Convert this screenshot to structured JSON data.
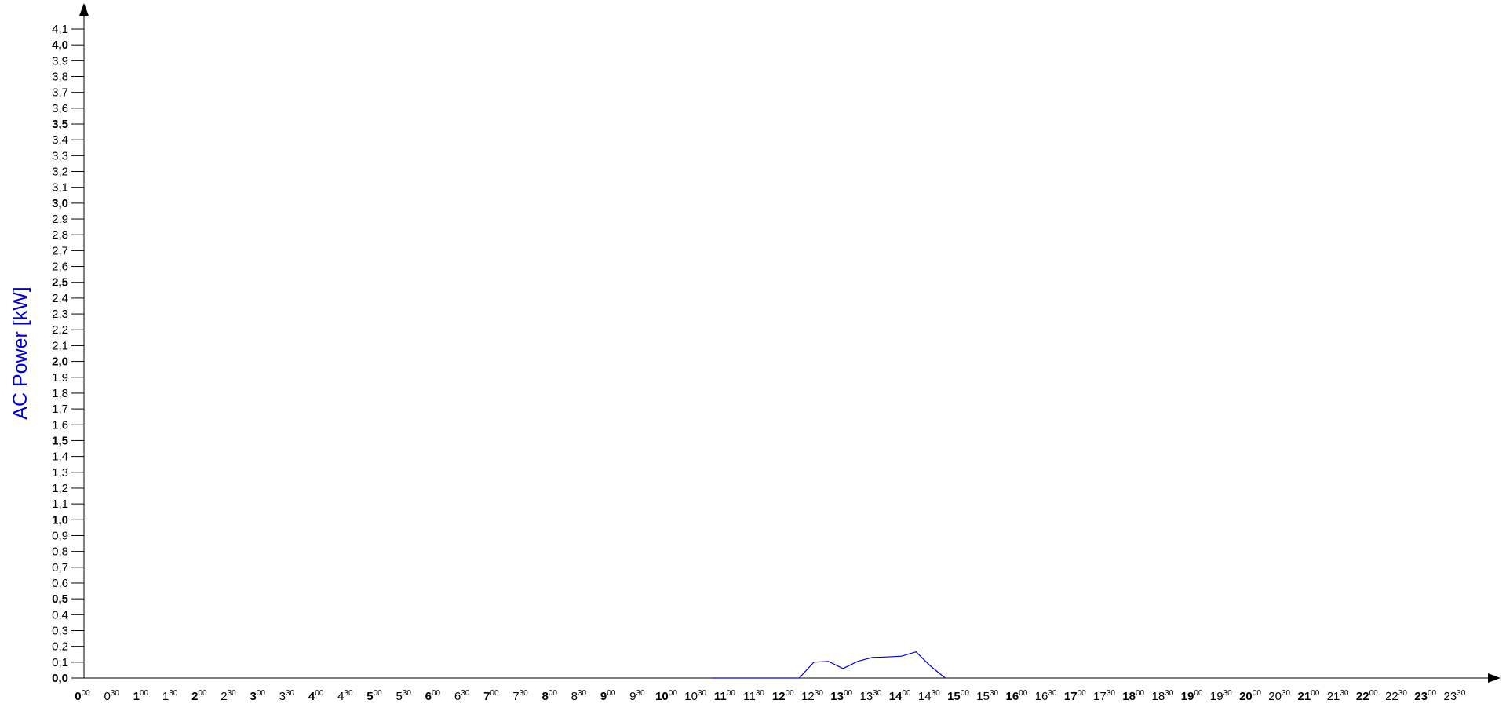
{
  "chart_data": {
    "type": "line",
    "title": "",
    "xlabel": "",
    "ylabel": "AC Power [kW]",
    "ylim": [
      0,
      4.1
    ],
    "xlim_hours": [
      0,
      23.5
    ],
    "grid": false,
    "colors": {
      "axis": "#000000",
      "line": "#0000cc",
      "ylabel": "#0000cc"
    },
    "y_ticks": [
      {
        "value": 0.0,
        "label": "0,0",
        "bold": true
      },
      {
        "value": 0.1,
        "label": "0,1",
        "bold": false
      },
      {
        "value": 0.2,
        "label": "0,2",
        "bold": false
      },
      {
        "value": 0.3,
        "label": "0,3",
        "bold": false
      },
      {
        "value": 0.4,
        "label": "0,4",
        "bold": false
      },
      {
        "value": 0.5,
        "label": "0,5",
        "bold": true
      },
      {
        "value": 0.6,
        "label": "0,6",
        "bold": false
      },
      {
        "value": 0.7,
        "label": "0,7",
        "bold": false
      },
      {
        "value": 0.8,
        "label": "0,8",
        "bold": false
      },
      {
        "value": 0.9,
        "label": "0,9",
        "bold": false
      },
      {
        "value": 1.0,
        "label": "1,0",
        "bold": true
      },
      {
        "value": 1.1,
        "label": "1,1",
        "bold": false
      },
      {
        "value": 1.2,
        "label": "1,2",
        "bold": false
      },
      {
        "value": 1.3,
        "label": "1,3",
        "bold": false
      },
      {
        "value": 1.4,
        "label": "1,4",
        "bold": false
      },
      {
        "value": 1.5,
        "label": "1,5",
        "bold": true
      },
      {
        "value": 1.6,
        "label": "1,6",
        "bold": false
      },
      {
        "value": 1.7,
        "label": "1,7",
        "bold": false
      },
      {
        "value": 1.8,
        "label": "1,8",
        "bold": false
      },
      {
        "value": 1.9,
        "label": "1,9",
        "bold": false
      },
      {
        "value": 2.0,
        "label": "2,0",
        "bold": true
      },
      {
        "value": 2.1,
        "label": "2,1",
        "bold": false
      },
      {
        "value": 2.2,
        "label": "2,2",
        "bold": false
      },
      {
        "value": 2.3,
        "label": "2,3",
        "bold": false
      },
      {
        "value": 2.4,
        "label": "2,4",
        "bold": false
      },
      {
        "value": 2.5,
        "label": "2,5",
        "bold": true
      },
      {
        "value": 2.6,
        "label": "2,6",
        "bold": false
      },
      {
        "value": 2.7,
        "label": "2,7",
        "bold": false
      },
      {
        "value": 2.8,
        "label": "2,8",
        "bold": false
      },
      {
        "value": 2.9,
        "label": "2,9",
        "bold": false
      },
      {
        "value": 3.0,
        "label": "3,0",
        "bold": true
      },
      {
        "value": 3.1,
        "label": "3,1",
        "bold": false
      },
      {
        "value": 3.2,
        "label": "3,2",
        "bold": false
      },
      {
        "value": 3.3,
        "label": "3,3",
        "bold": false
      },
      {
        "value": 3.4,
        "label": "3,4",
        "bold": false
      },
      {
        "value": 3.5,
        "label": "3,5",
        "bold": true
      },
      {
        "value": 3.6,
        "label": "3,6",
        "bold": false
      },
      {
        "value": 3.7,
        "label": "3,7",
        "bold": false
      },
      {
        "value": 3.8,
        "label": "3,8",
        "bold": false
      },
      {
        "value": 3.9,
        "label": "3,9",
        "bold": false
      },
      {
        "value": 4.0,
        "label": "4,0",
        "bold": true
      },
      {
        "value": 4.1,
        "label": "4,1",
        "bold": false
      }
    ],
    "x_ticks": [
      {
        "hour": "0",
        "min": "00",
        "bold": true
      },
      {
        "hour": "0",
        "min": "30",
        "bold": false
      },
      {
        "hour": "1",
        "min": "00",
        "bold": true
      },
      {
        "hour": "1",
        "min": "30",
        "bold": false
      },
      {
        "hour": "2",
        "min": "00",
        "bold": true
      },
      {
        "hour": "2",
        "min": "30",
        "bold": false
      },
      {
        "hour": "3",
        "min": "00",
        "bold": true
      },
      {
        "hour": "3",
        "min": "30",
        "bold": false
      },
      {
        "hour": "4",
        "min": "00",
        "bold": true
      },
      {
        "hour": "4",
        "min": "30",
        "bold": false
      },
      {
        "hour": "5",
        "min": "00",
        "bold": true
      },
      {
        "hour": "5",
        "min": "30",
        "bold": false
      },
      {
        "hour": "6",
        "min": "00",
        "bold": true
      },
      {
        "hour": "6",
        "min": "30",
        "bold": false
      },
      {
        "hour": "7",
        "min": "00",
        "bold": true
      },
      {
        "hour": "7",
        "min": "30",
        "bold": false
      },
      {
        "hour": "8",
        "min": "00",
        "bold": true
      },
      {
        "hour": "8",
        "min": "30",
        "bold": false
      },
      {
        "hour": "9",
        "min": "00",
        "bold": true
      },
      {
        "hour": "9",
        "min": "30",
        "bold": false
      },
      {
        "hour": "10",
        "min": "00",
        "bold": true
      },
      {
        "hour": "10",
        "min": "30",
        "bold": false
      },
      {
        "hour": "11",
        "min": "00",
        "bold": true
      },
      {
        "hour": "11",
        "min": "30",
        "bold": false
      },
      {
        "hour": "12",
        "min": "00",
        "bold": true
      },
      {
        "hour": "12",
        "min": "30",
        "bold": false
      },
      {
        "hour": "13",
        "min": "00",
        "bold": true
      },
      {
        "hour": "13",
        "min": "30",
        "bold": false
      },
      {
        "hour": "14",
        "min": "00",
        "bold": true
      },
      {
        "hour": "14",
        "min": "30",
        "bold": false
      },
      {
        "hour": "15",
        "min": "00",
        "bold": true
      },
      {
        "hour": "15",
        "min": "30",
        "bold": false
      },
      {
        "hour": "16",
        "min": "00",
        "bold": true
      },
      {
        "hour": "16",
        "min": "30",
        "bold": false
      },
      {
        "hour": "17",
        "min": "00",
        "bold": true
      },
      {
        "hour": "17",
        "min": "30",
        "bold": false
      },
      {
        "hour": "18",
        "min": "00",
        "bold": true
      },
      {
        "hour": "18",
        "min": "30",
        "bold": false
      },
      {
        "hour": "19",
        "min": "00",
        "bold": true
      },
      {
        "hour": "19",
        "min": "30",
        "bold": false
      },
      {
        "hour": "20",
        "min": "00",
        "bold": true
      },
      {
        "hour": "20",
        "min": "30",
        "bold": false
      },
      {
        "hour": "21",
        "min": "00",
        "bold": true
      },
      {
        "hour": "21",
        "min": "30",
        "bold": false
      },
      {
        "hour": "22",
        "min": "00",
        "bold": true
      },
      {
        "hour": "22",
        "min": "30",
        "bold": false
      },
      {
        "hour": "23",
        "min": "00",
        "bold": true
      },
      {
        "hour": "23",
        "min": "30",
        "bold": false
      }
    ],
    "series": [
      {
        "x": [
          "10:45",
          "11:00",
          "11:15",
          "11:30",
          "11:45",
          "12:00",
          "12:15",
          "12:30",
          "12:45",
          "13:00",
          "13:15",
          "13:30",
          "13:45",
          "14:00",
          "14:15",
          "14:30",
          "14:45"
        ],
        "values": [
          0.0,
          0.0,
          0.0,
          0.0,
          0.0,
          0.0,
          0.0,
          0.1,
          0.105,
          0.06,
          0.105,
          0.13,
          0.133,
          0.138,
          0.165,
          0.075,
          0.0
        ]
      }
    ]
  }
}
